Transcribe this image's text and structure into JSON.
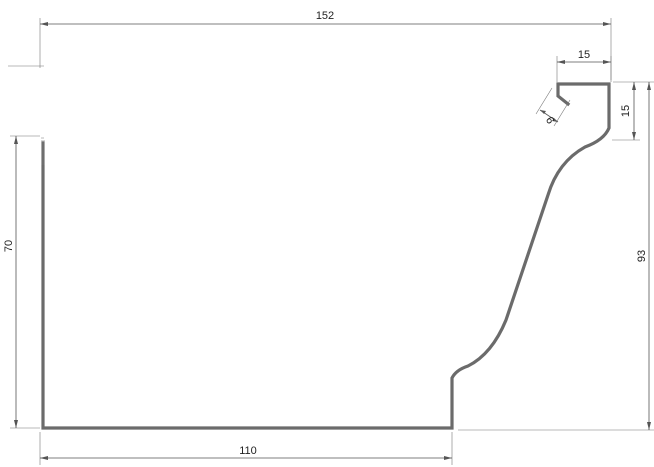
{
  "drawing": {
    "subject": "gutter profile cross-section",
    "colors": {
      "profile": "#6b6b6b",
      "dimension": "#555555",
      "text": "#222222"
    },
    "dimensions": {
      "overall_width": "152",
      "base_width": "110",
      "back_height": "70",
      "front_height": "93",
      "bead_width": "15",
      "bead_height": "15",
      "lip": "6"
    }
  }
}
